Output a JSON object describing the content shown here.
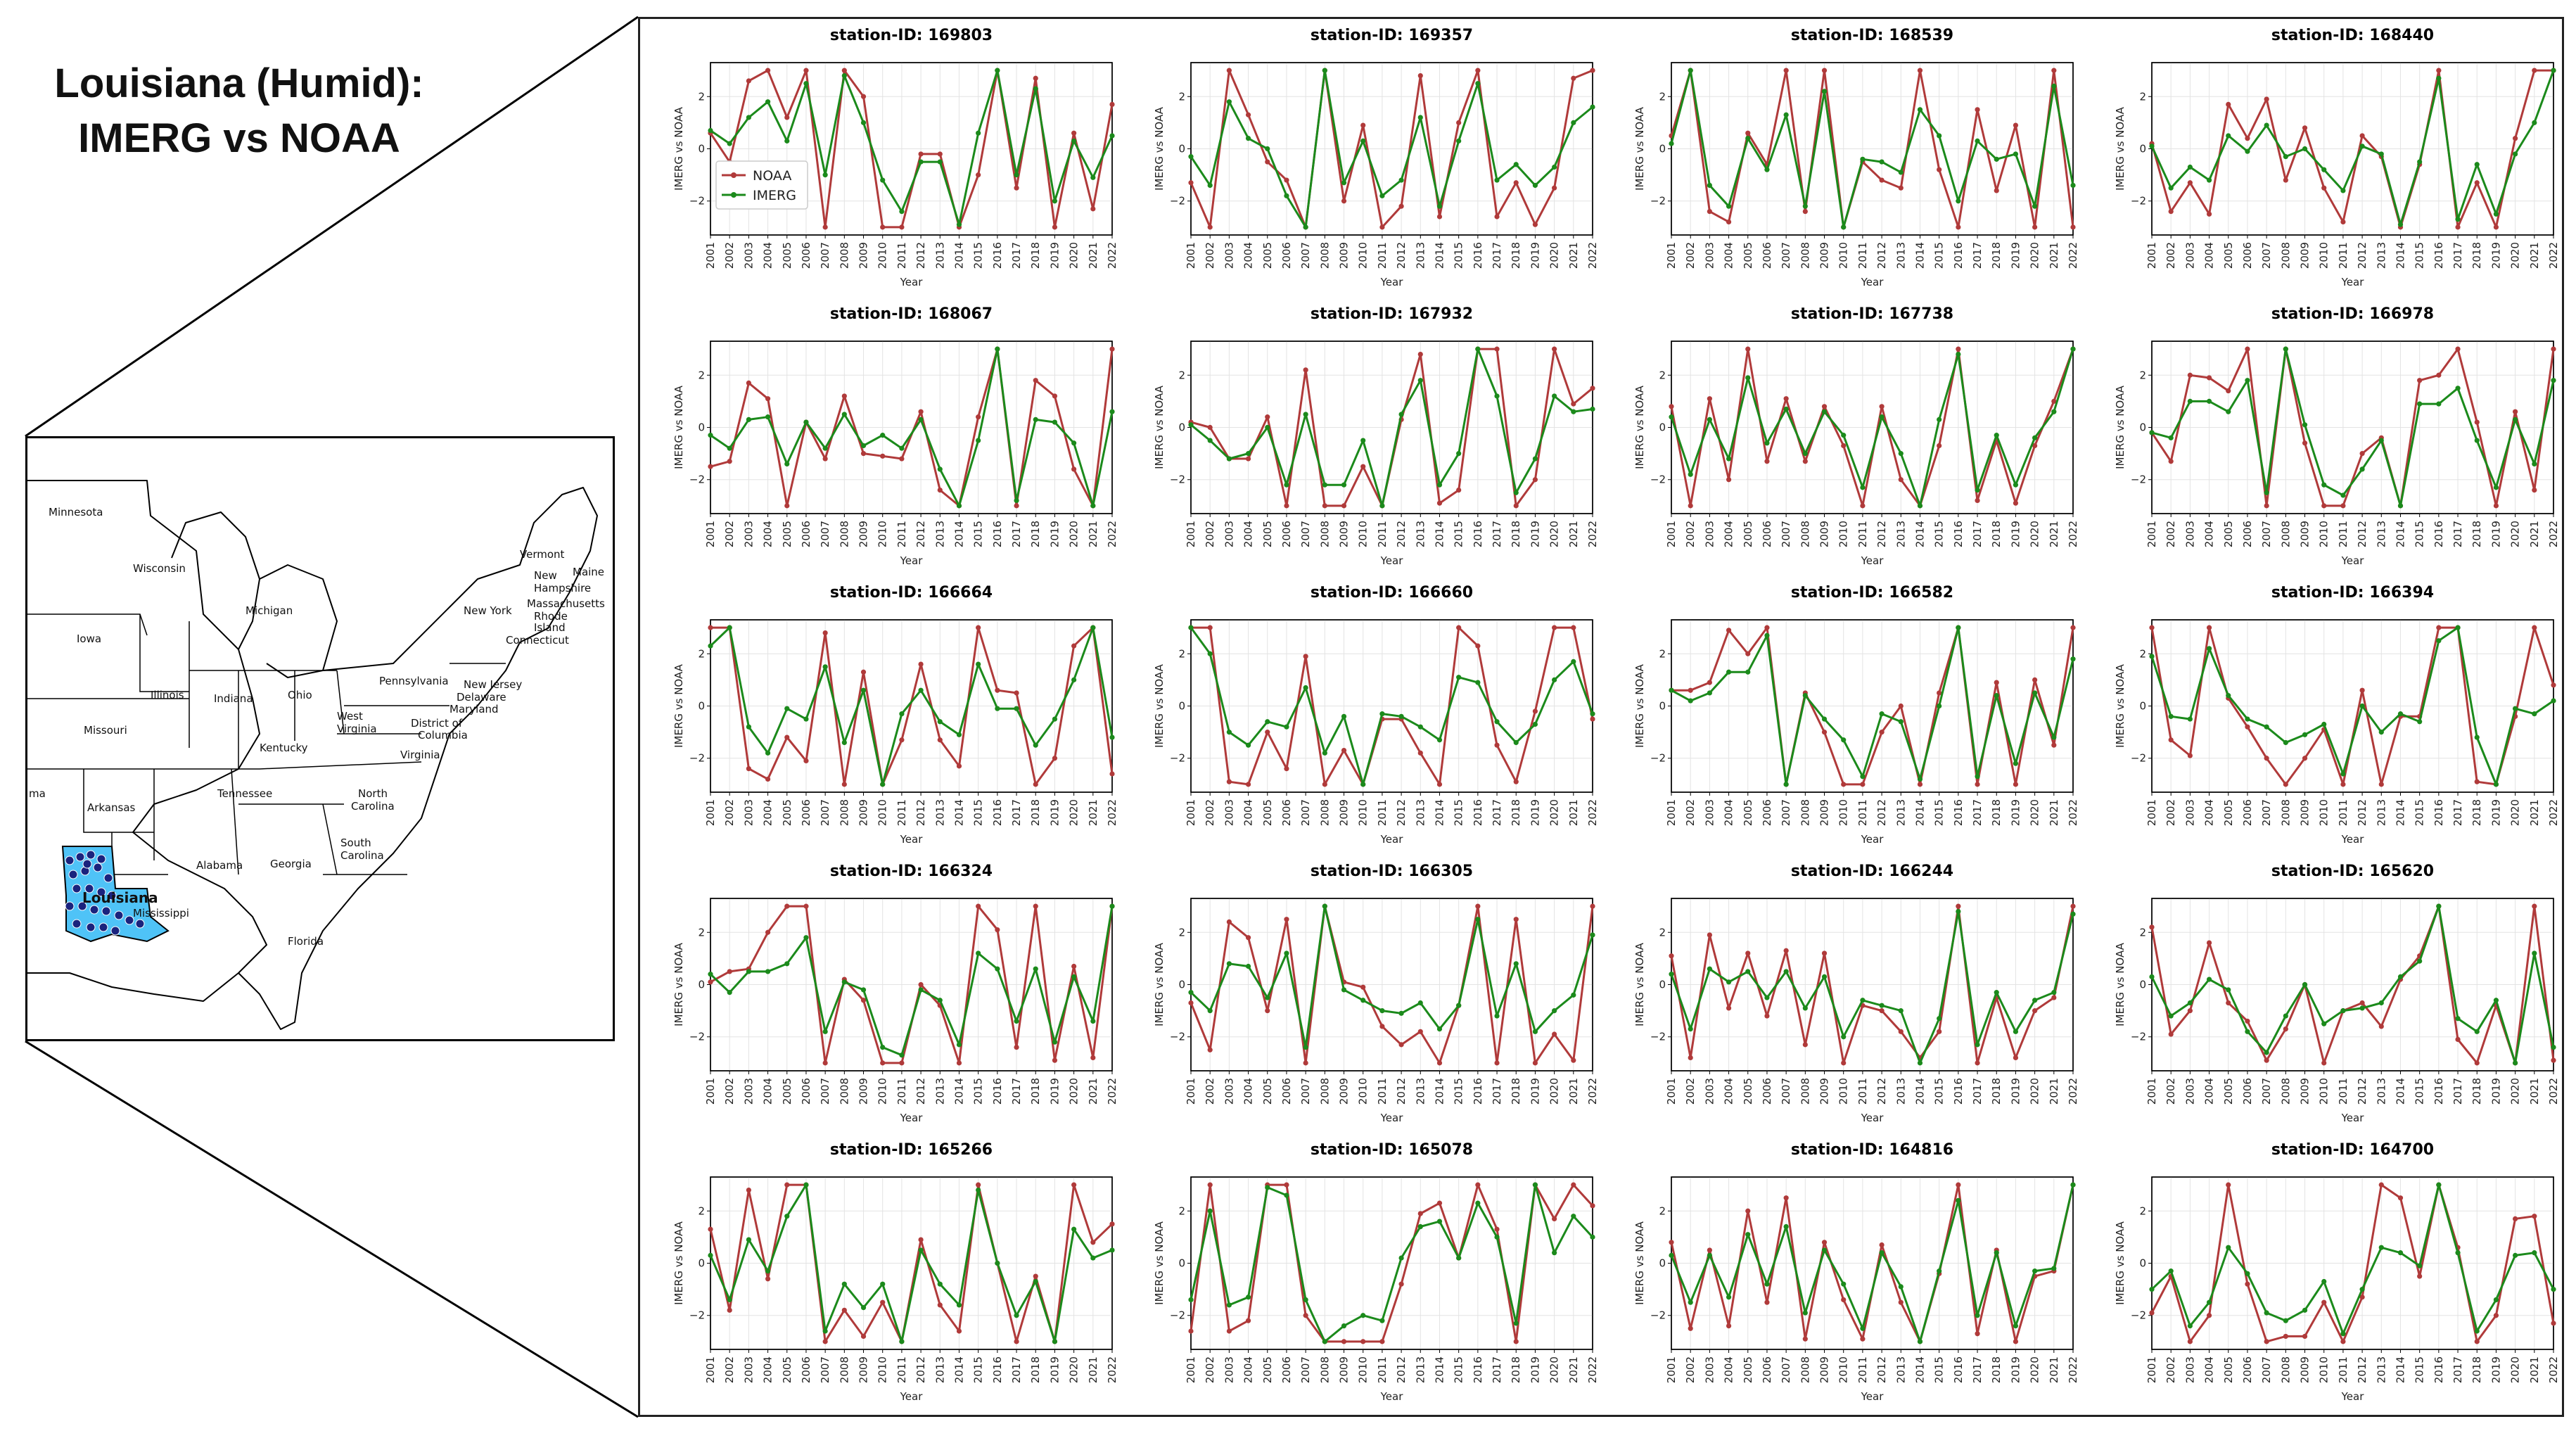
{
  "title": {
    "line1": "Louisiana (Humid):",
    "line2": "IMERG vs NOAA"
  },
  "map": {
    "highlight_color": "#4fc3f7",
    "station_color": "#1a237e",
    "labels": [
      {
        "text": "Minnesota",
        "name": "minnesota"
      },
      {
        "text": "Wisconsin",
        "name": "wisconsin"
      },
      {
        "text": "Michigan",
        "name": "michigan"
      },
      {
        "text": "Iowa",
        "name": "iowa"
      },
      {
        "text": "Illinois",
        "name": "illinois"
      },
      {
        "text": "Indiana",
        "name": "indiana"
      },
      {
        "text": "Ohio",
        "name": "ohio"
      },
      {
        "text": "Pennsylvania",
        "name": "pennsylvania"
      },
      {
        "text": "New York",
        "name": "new-york"
      },
      {
        "text": "Vermont",
        "name": "vermont"
      },
      {
        "text": "New",
        "name": "new-hampshire-1"
      },
      {
        "text": "Hampshire",
        "name": "new-hampshire-2"
      },
      {
        "text": "Maine",
        "name": "maine"
      },
      {
        "text": "Massachusetts",
        "name": "massachusetts"
      },
      {
        "text": "Rhode",
        "name": "rhode-island-1"
      },
      {
        "text": "Island",
        "name": "rhode-island-2"
      },
      {
        "text": "Connecticut",
        "name": "connecticut"
      },
      {
        "text": "New Jersey",
        "name": "new-jersey"
      },
      {
        "text": "Delaware",
        "name": "delaware"
      },
      {
        "text": "Maryland",
        "name": "maryland"
      },
      {
        "text": "District of",
        "name": "dc-1"
      },
      {
        "text": "Columbia",
        "name": "dc-2"
      },
      {
        "text": "West",
        "name": "west-virginia-1"
      },
      {
        "text": "Virginia",
        "name": "west-virginia-2"
      },
      {
        "text": "Virginia",
        "name": "virginia"
      },
      {
        "text": "Missouri",
        "name": "missouri"
      },
      {
        "text": "Kentucky",
        "name": "kentucky"
      },
      {
        "text": "Tennessee",
        "name": "tennessee"
      },
      {
        "text": "North",
        "name": "north-carolina-1"
      },
      {
        "text": "Carolina",
        "name": "north-carolina-2"
      },
      {
        "text": "South",
        "name": "south-carolina-1"
      },
      {
        "text": "Carolina",
        "name": "south-carolina-2"
      },
      {
        "text": "Arkansas",
        "name": "arkansas"
      },
      {
        "text": "Mississippi",
        "name": "mississippi"
      },
      {
        "text": "Alabama",
        "name": "alabama"
      },
      {
        "text": "Georgia",
        "name": "georgia"
      },
      {
        "text": "Florida",
        "name": "florida"
      },
      {
        "text": "Louisiana",
        "name": "louisiana"
      },
      {
        "text": "ma",
        "name": "oklahoma-partial"
      }
    ]
  },
  "chart_data": {
    "type": "line",
    "grid": true,
    "legend_placement": "inside, left of first subplot",
    "xlabel": "Year",
    "ylabel": "IMERG vs NOAA",
    "ylim": [
      -3.3,
      3.3
    ],
    "yticks": [
      -2,
      0,
      2
    ],
    "x": [
      "2001",
      "2002",
      "2003",
      "2004",
      "2005",
      "2006",
      "2007",
      "2008",
      "2009",
      "2010",
      "2011",
      "2012",
      "2013",
      "2014",
      "2015",
      "2016",
      "2017",
      "2018",
      "2019",
      "2020",
      "2021",
      "2022"
    ],
    "series_styles": [
      {
        "name": "NOAA",
        "color": "#b03a3a"
      },
      {
        "name": "IMERG",
        "color": "#1b8a1b"
      }
    ],
    "subplots": [
      {
        "title": "station-ID: 169803",
        "NOAA": [
          0.6,
          -0.5,
          2.6,
          3.0,
          1.2,
          3.0,
          -3.0,
          3.0,
          2.0,
          -3.0,
          -3.0,
          -0.2,
          -0.2,
          -3.0,
          -1.0,
          3.0,
          -1.5,
          2.7,
          -3.0,
          0.6,
          -2.3,
          1.7
        ],
        "IMERG": [
          0.7,
          0.2,
          1.2,
          1.8,
          0.3,
          2.5,
          -1.0,
          2.8,
          1.0,
          -1.2,
          -2.4,
          -0.5,
          -0.5,
          -2.9,
          0.6,
          3.0,
          -1.0,
          2.3,
          -2.0,
          0.3,
          -1.1,
          0.5
        ]
      },
      {
        "title": "station-ID: 169357",
        "NOAA": [
          -1.3,
          -3.0,
          3.0,
          1.3,
          -0.5,
          -1.2,
          -3.0,
          3.0,
          -2.0,
          0.9,
          -3.0,
          -2.2,
          2.8,
          -2.6,
          1.0,
          3.0,
          -2.6,
          -1.3,
          -2.9,
          -1.5,
          2.7,
          3.0
        ],
        "IMERG": [
          -0.3,
          -1.4,
          1.8,
          0.4,
          0.0,
          -1.8,
          -3.0,
          3.0,
          -1.3,
          0.3,
          -1.8,
          -1.2,
          1.2,
          -2.2,
          0.3,
          2.5,
          -1.2,
          -0.6,
          -1.4,
          -0.7,
          1.0,
          1.6
        ]
      },
      {
        "title": "station-ID: 168539",
        "NOAA": [
          0.5,
          3.0,
          -2.4,
          -2.8,
          0.6,
          -0.6,
          3.0,
          -2.4,
          3.0,
          -3.0,
          -0.5,
          -1.2,
          -1.5,
          3.0,
          -0.8,
          -3.0,
          1.5,
          -1.6,
          0.9,
          -3.0,
          3.0,
          -3.0
        ],
        "IMERG": [
          0.2,
          3.0,
          -1.4,
          -2.2,
          0.4,
          -0.8,
          1.3,
          -2.2,
          2.2,
          -3.0,
          -0.4,
          -0.5,
          -0.9,
          1.5,
          0.5,
          -2.0,
          0.3,
          -0.4,
          -0.2,
          -2.2,
          2.4,
          -1.4
        ]
      },
      {
        "title": "station-ID: 168440",
        "NOAA": [
          0.2,
          -2.4,
          -1.3,
          -2.5,
          1.7,
          0.4,
          1.9,
          -1.2,
          0.8,
          -1.5,
          -2.8,
          0.5,
          -0.3,
          -3.0,
          -0.6,
          3.0,
          -3.0,
          -1.3,
          -3.0,
          0.4,
          3.0,
          3.0
        ],
        "IMERG": [
          0.1,
          -1.5,
          -0.7,
          -1.2,
          0.5,
          -0.1,
          0.9,
          -0.3,
          0.0,
          -0.8,
          -1.6,
          0.1,
          -0.2,
          -2.9,
          -0.5,
          2.7,
          -2.7,
          -0.6,
          -2.5,
          -0.2,
          1.0,
          3.0
        ]
      },
      {
        "title": "station-ID: 168067",
        "NOAA": [
          -1.5,
          -1.3,
          1.7,
          1.1,
          -3.0,
          0.2,
          -1.2,
          1.2,
          -1.0,
          -1.1,
          -1.2,
          0.6,
          -2.4,
          -3.0,
          0.4,
          3.0,
          -3.0,
          1.8,
          1.2,
          -1.6,
          -3.0,
          3.0
        ],
        "IMERG": [
          -0.3,
          -0.8,
          0.3,
          0.4,
          -1.4,
          0.2,
          -0.8,
          0.5,
          -0.7,
          -0.3,
          -0.8,
          0.3,
          -1.6,
          -3.0,
          -0.5,
          3.0,
          -2.8,
          0.3,
          0.2,
          -0.6,
          -3.0,
          0.6
        ]
      },
      {
        "title": "station-ID: 167932",
        "NOAA": [
          0.2,
          0.0,
          -1.2,
          -1.2,
          0.4,
          -3.0,
          2.2,
          -3.0,
          -3.0,
          -1.5,
          -3.0,
          0.3,
          2.8,
          -2.9,
          -2.4,
          3.0,
          3.0,
          -3.0,
          -2.0,
          3.0,
          0.9,
          1.5
        ],
        "IMERG": [
          0.1,
          -0.5,
          -1.2,
          -1.0,
          0.0,
          -2.2,
          0.5,
          -2.2,
          -2.2,
          -0.5,
          -3.0,
          0.5,
          1.8,
          -2.2,
          -1.0,
          3.0,
          1.2,
          -2.5,
          -1.2,
          1.2,
          0.6,
          0.7
        ]
      },
      {
        "title": "station-ID: 167738",
        "NOAA": [
          0.8,
          -3.0,
          1.1,
          -2.0,
          3.0,
          -1.3,
          1.1,
          -1.3,
          0.8,
          -0.7,
          -3.0,
          0.8,
          -2.0,
          -3.0,
          -0.7,
          3.0,
          -2.8,
          -0.5,
          -2.9,
          -0.7,
          1.0,
          3.0
        ],
        "IMERG": [
          0.4,
          -1.8,
          0.3,
          -1.2,
          1.9,
          -0.6,
          0.7,
          -1.0,
          0.6,
          -0.3,
          -2.3,
          0.4,
          -1.0,
          -3.0,
          0.3,
          2.8,
          -2.4,
          -0.3,
          -2.2,
          -0.4,
          0.6,
          3.0
        ]
      },
      {
        "title": "station-ID: 166978",
        "NOAA": [
          -0.2,
          -1.3,
          2.0,
          1.9,
          1.4,
          3.0,
          -3.0,
          3.0,
          -0.6,
          -3.0,
          -3.0,
          -1.0,
          -0.4,
          -3.0,
          1.8,
          2.0,
          3.0,
          0.2,
          -3.0,
          0.6,
          -2.4,
          3.0
        ],
        "IMERG": [
          -0.2,
          -0.4,
          1.0,
          1.0,
          0.6,
          1.8,
          -2.5,
          3.0,
          0.1,
          -2.2,
          -2.6,
          -1.6,
          -0.5,
          -3.0,
          0.9,
          0.9,
          1.5,
          -0.5,
          -2.3,
          0.3,
          -1.4,
          1.8
        ]
      },
      {
        "title": "station-ID: 166664",
        "NOAA": [
          3.0,
          3.0,
          -2.4,
          -2.8,
          -1.2,
          -2.1,
          2.8,
          -3.0,
          1.3,
          -3.0,
          -1.3,
          1.6,
          -1.3,
          -2.3,
          3.0,
          0.6,
          0.5,
          -3.0,
          -2.0,
          2.3,
          3.0,
          -2.6
        ],
        "IMERG": [
          2.3,
          3.0,
          -0.8,
          -1.8,
          -0.1,
          -0.5,
          1.5,
          -1.4,
          0.6,
          -3.0,
          -0.3,
          0.6,
          -0.6,
          -1.1,
          1.6,
          -0.1,
          -0.1,
          -1.5,
          -0.5,
          1.0,
          3.0,
          -1.2
        ]
      },
      {
        "title": "station-ID: 166660",
        "NOAA": [
          3.0,
          3.0,
          -2.9,
          -3.0,
          -1.0,
          -2.4,
          1.9,
          -3.0,
          -1.7,
          -3.0,
          -0.5,
          -0.5,
          -1.8,
          -3.0,
          3.0,
          2.3,
          -1.5,
          -2.9,
          -0.2,
          3.0,
          3.0,
          -0.5
        ],
        "IMERG": [
          3.0,
          2.0,
          -1.0,
          -1.5,
          -0.6,
          -0.8,
          0.7,
          -1.8,
          -0.4,
          -3.0,
          -0.3,
          -0.4,
          -0.8,
          -1.3,
          1.1,
          0.9,
          -0.6,
          -1.4,
          -0.7,
          1.0,
          1.7,
          -0.3
        ]
      },
      {
        "title": "station-ID: 166582",
        "NOAA": [
          0.6,
          0.6,
          0.9,
          2.9,
          2.0,
          3.0,
          -3.0,
          0.5,
          -1.0,
          -3.0,
          -3.0,
          -1.0,
          0.0,
          -3.0,
          0.5,
          3.0,
          -3.0,
          0.9,
          -3.0,
          1.0,
          -1.5,
          3.0
        ],
        "IMERG": [
          0.6,
          0.2,
          0.5,
          1.3,
          1.3,
          2.7,
          -3.0,
          0.4,
          -0.5,
          -1.3,
          -2.7,
          -0.3,
          -0.6,
          -2.8,
          0.0,
          3.0,
          -2.7,
          0.4,
          -2.2,
          0.5,
          -1.2,
          1.8
        ]
      },
      {
        "title": "station-ID: 166394",
        "NOAA": [
          3.0,
          -1.3,
          -1.9,
          3.0,
          0.3,
          -0.8,
          -2.0,
          -3.0,
          -2.0,
          -0.9,
          -3.0,
          0.6,
          -3.0,
          -0.4,
          -0.4,
          3.0,
          3.0,
          -2.9,
          -3.0,
          -0.4,
          3.0,
          0.8
        ],
        "IMERG": [
          1.9,
          -0.4,
          -0.5,
          2.2,
          0.4,
          -0.5,
          -0.8,
          -1.4,
          -1.1,
          -0.7,
          -2.6,
          0.0,
          -1.0,
          -0.3,
          -0.6,
          2.5,
          3.0,
          -1.2,
          -3.0,
          -0.1,
          -0.3,
          0.2
        ]
      },
      {
        "title": "station-ID: 166324",
        "NOAA": [
          0.1,
          0.5,
          0.6,
          2.0,
          3.0,
          3.0,
          -3.0,
          0.2,
          -0.6,
          -3.0,
          -3.0,
          0.0,
          -0.8,
          -3.0,
          3.0,
          2.1,
          -2.4,
          3.0,
          -2.9,
          0.7,
          -2.8,
          3.0
        ],
        "IMERG": [
          0.4,
          -0.3,
          0.5,
          0.5,
          0.8,
          1.8,
          -1.8,
          0.1,
          -0.2,
          -2.4,
          -2.7,
          -0.2,
          -0.6,
          -2.3,
          1.2,
          0.6,
          -1.4,
          0.6,
          -2.2,
          0.3,
          -1.4,
          3.0
        ]
      },
      {
        "title": "station-ID: 166305",
        "NOAA": [
          -0.7,
          -2.5,
          2.4,
          1.8,
          -1.0,
          2.5,
          -3.0,
          3.0,
          0.1,
          -0.1,
          -1.6,
          -2.3,
          -1.8,
          -3.0,
          -0.8,
          3.0,
          -3.0,
          2.5,
          -3.0,
          -1.9,
          -2.9,
          3.0
        ],
        "IMERG": [
          -0.3,
          -1.0,
          0.8,
          0.7,
          -0.5,
          1.2,
          -2.4,
          3.0,
          -0.2,
          -0.6,
          -1.0,
          -1.1,
          -0.7,
          -1.7,
          -0.8,
          2.5,
          -1.2,
          0.8,
          -1.8,
          -1.0,
          -0.4,
          1.9
        ]
      },
      {
        "title": "station-ID: 166244",
        "NOAA": [
          1.1,
          -2.8,
          1.9,
          -0.9,
          1.2,
          -1.2,
          1.3,
          -2.3,
          1.2,
          -3.0,
          -0.8,
          -1.0,
          -1.8,
          -2.8,
          -1.8,
          3.0,
          -3.0,
          -0.5,
          -2.8,
          -1.0,
          -0.5,
          3.0
        ],
        "IMERG": [
          0.4,
          -1.7,
          0.6,
          0.1,
          0.5,
          -0.5,
          0.5,
          -0.9,
          0.3,
          -2.0,
          -0.6,
          -0.8,
          -1.0,
          -3.0,
          -1.3,
          2.8,
          -2.3,
          -0.3,
          -1.8,
          -0.6,
          -0.3,
          2.7
        ]
      },
      {
        "title": "station-ID: 165620",
        "NOAA": [
          2.2,
          -1.9,
          -1.0,
          1.6,
          -0.7,
          -1.4,
          -2.9,
          -1.7,
          0.0,
          -3.0,
          -1.0,
          -0.7,
          -1.6,
          0.2,
          1.1,
          3.0,
          -2.1,
          -3.0,
          -0.8,
          -3.0,
          3.0,
          -2.9
        ],
        "IMERG": [
          0.3,
          -1.2,
          -0.7,
          0.2,
          -0.2,
          -1.8,
          -2.6,
          -1.2,
          0.0,
          -1.5,
          -1.0,
          -0.9,
          -0.7,
          0.3,
          0.9,
          3.0,
          -1.3,
          -1.8,
          -0.6,
          -3.0,
          1.2,
          -2.4
        ]
      },
      {
        "title": "station-ID: 165266",
        "NOAA": [
          1.3,
          -1.8,
          2.8,
          -0.6,
          3.0,
          3.0,
          -3.0,
          -1.8,
          -2.8,
          -1.5,
          -3.0,
          0.9,
          -1.6,
          -2.6,
          3.0,
          0.0,
          -3.0,
          -0.5,
          -3.0,
          3.0,
          0.8,
          1.5
        ],
        "IMERG": [
          0.3,
          -1.4,
          0.9,
          -0.3,
          1.8,
          3.0,
          -2.6,
          -0.8,
          -1.7,
          -0.8,
          -3.0,
          0.5,
          -0.8,
          -1.6,
          2.8,
          0.0,
          -2.0,
          -0.7,
          -3.0,
          1.3,
          0.2,
          0.5
        ]
      },
      {
        "title": "station-ID: 165078",
        "NOAA": [
          -2.6,
          3.0,
          -2.6,
          -2.2,
          3.0,
          3.0,
          -2.0,
          -3.0,
          -3.0,
          -3.0,
          -3.0,
          -0.8,
          1.9,
          2.3,
          0.2,
          3.0,
          1.3,
          -3.0,
          3.0,
          1.7,
          3.0,
          2.2
        ],
        "IMERG": [
          -1.4,
          2.0,
          -1.6,
          -1.3,
          2.9,
          2.6,
          -1.4,
          -3.0,
          -2.4,
          -2.0,
          -2.2,
          0.2,
          1.4,
          1.6,
          0.2,
          2.3,
          1.0,
          -2.3,
          3.0,
          0.4,
          1.8,
          1.0
        ]
      },
      {
        "title": "station-ID: 164816",
        "NOAA": [
          0.8,
          -2.5,
          0.5,
          -2.4,
          2.0,
          -1.5,
          2.5,
          -2.9,
          0.8,
          -1.4,
          -2.9,
          0.7,
          -1.5,
          -3.0,
          -0.4,
          3.0,
          -2.7,
          0.5,
          -3.0,
          -0.5,
          -0.3,
          3.0
        ],
        "IMERG": [
          0.3,
          -1.5,
          0.3,
          -1.3,
          1.1,
          -0.8,
          1.4,
          -1.9,
          0.5,
          -0.8,
          -2.5,
          0.4,
          -0.9,
          -3.0,
          -0.3,
          2.4,
          -2.0,
          0.4,
          -2.4,
          -0.3,
          -0.2,
          3.0
        ]
      },
      {
        "title": "station-ID: 164700",
        "NOAA": [
          -1.9,
          -0.5,
          -3.0,
          -2.0,
          3.0,
          -0.8,
          -3.0,
          -2.8,
          -2.8,
          -1.5,
          -3.0,
          -1.3,
          3.0,
          2.5,
          -0.5,
          3.0,
          0.6,
          -3.0,
          -2.0,
          1.7,
          1.8,
          -2.3
        ],
        "IMERG": [
          -1.0,
          -0.3,
          -2.4,
          -1.5,
          0.6,
          -0.4,
          -1.9,
          -2.2,
          -1.8,
          -0.7,
          -2.7,
          -1.0,
          0.6,
          0.4,
          -0.1,
          3.0,
          0.4,
          -2.6,
          -1.4,
          0.3,
          0.4,
          -1.0
        ]
      }
    ]
  }
}
